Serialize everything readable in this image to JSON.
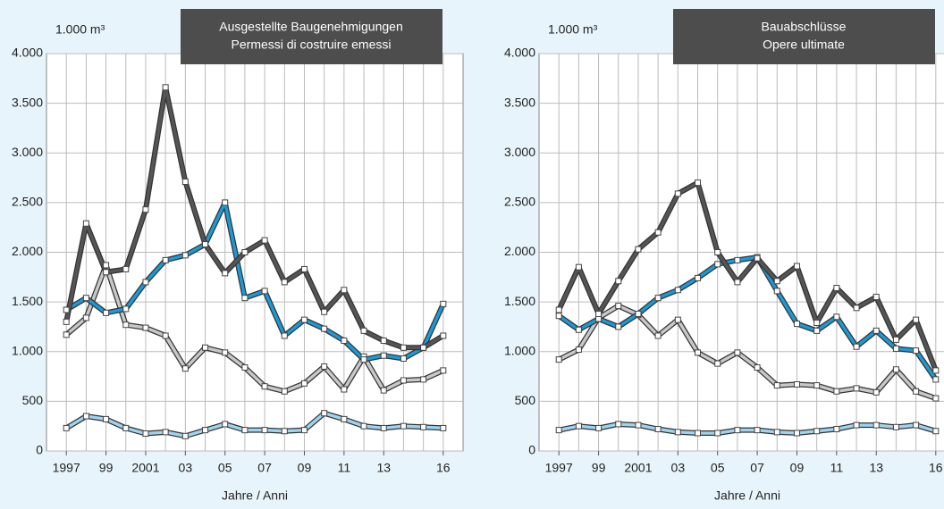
{
  "chart_data": [
    {
      "type": "line",
      "title": "Ausgestellte Baugenehmigungen",
      "subtitle": "Permessi di costruire emessi",
      "y_unit": "1.000 m³",
      "xlabel": "Jahre / Anni",
      "x": [
        1997,
        1998,
        1999,
        2000,
        2001,
        2002,
        2003,
        2004,
        2005,
        2006,
        2007,
        2008,
        2009,
        2010,
        2011,
        2012,
        2013,
        2014,
        2015,
        2016
      ],
      "xlim": [
        1996,
        2017
      ],
      "xticks": [
        {
          "value": 1997,
          "label": "1997"
        },
        {
          "value": 1999,
          "label": "99"
        },
        {
          "value": 2001,
          "label": "2001"
        },
        {
          "value": 2003,
          "label": "03"
        },
        {
          "value": 2005,
          "label": "05"
        },
        {
          "value": 2007,
          "label": "07"
        },
        {
          "value": 2009,
          "label": "09"
        },
        {
          "value": 2011,
          "label": "11"
        },
        {
          "value": 2013,
          "label": "13"
        },
        {
          "value": 2016,
          "label": "16"
        }
      ],
      "ylim": [
        0,
        4000
      ],
      "yticks": [
        0,
        500,
        {
          "value": 1000,
          "label": "1.000"
        },
        {
          "value": 1500,
          "label": "1.500"
        },
        {
          "value": 2000,
          "label": "2.000"
        },
        {
          "value": 2500,
          "label": "2.500"
        },
        {
          "value": 3000,
          "label": "3.000"
        },
        {
          "value": 3500,
          "label": "3.500"
        },
        {
          "value": 4000,
          "label": "4.000"
        }
      ],
      "grid": true,
      "series": [
        {
          "color": "#c8c8c8",
          "values": [
            1170,
            1340,
            1870,
            1270,
            1240,
            1160,
            830,
            1040,
            990,
            840,
            650,
            600,
            680,
            850,
            620,
            950,
            610,
            710,
            720,
            810
          ]
        },
        {
          "color": "#9fd3ef",
          "values": [
            230,
            350,
            320,
            230,
            175,
            190,
            150,
            210,
            270,
            210,
            210,
            200,
            210,
            380,
            320,
            250,
            230,
            250,
            240,
            230
          ]
        },
        {
          "color": "#1a9ad6",
          "values": [
            1420,
            1540,
            1390,
            1430,
            1700,
            1920,
            1970,
            2080,
            2500,
            1540,
            1610,
            1160,
            1320,
            1230,
            1110,
            920,
            960,
            930,
            1040,
            1480
          ]
        },
        {
          "color": "#555555",
          "values": [
            1300,
            2290,
            1800,
            1830,
            2430,
            3660,
            2710,
            2080,
            1790,
            2000,
            2120,
            1700,
            1830,
            1400,
            1620,
            1210,
            1110,
            1040,
            1040,
            1160
          ]
        }
      ]
    },
    {
      "type": "line",
      "title": "Bauabschlüsse",
      "subtitle": "Opere ultimate",
      "y_unit": "1.000 m³",
      "xlabel": "Jahre / Anni",
      "x": [
        1997,
        1998,
        1999,
        2000,
        2001,
        2002,
        2003,
        2004,
        2005,
        2006,
        2007,
        2008,
        2009,
        2010,
        2011,
        2012,
        2013,
        2014,
        2015,
        2016
      ],
      "xlim": [
        1996,
        2017
      ],
      "xticks": [
        {
          "value": 1997,
          "label": "1997"
        },
        {
          "value": 1999,
          "label": "99"
        },
        {
          "value": 2001,
          "label": "2001"
        },
        {
          "value": 2003,
          "label": "03"
        },
        {
          "value": 2005,
          "label": "05"
        },
        {
          "value": 2007,
          "label": "07"
        },
        {
          "value": 2009,
          "label": "09"
        },
        {
          "value": 2011,
          "label": "11"
        },
        {
          "value": 2013,
          "label": "13"
        },
        {
          "value": 2016,
          "label": "16"
        }
      ],
      "ylim": [
        0,
        4000
      ],
      "yticks": [
        0,
        500,
        {
          "value": 1000,
          "label": "1.000"
        },
        {
          "value": 1500,
          "label": "1.500"
        },
        {
          "value": 2000,
          "label": "2.000"
        },
        {
          "value": 2500,
          "label": "2.500"
        },
        {
          "value": 3000,
          "label": "3.000"
        },
        {
          "value": 3500,
          "label": "3.500"
        },
        {
          "value": 4000,
          "label": "4.000"
        }
      ],
      "grid": true,
      "series": [
        {
          "color": "#c8c8c8",
          "values": [
            920,
            1020,
            1340,
            1460,
            1370,
            1160,
            1320,
            990,
            880,
            990,
            840,
            660,
            670,
            660,
            600,
            630,
            590,
            820,
            600,
            530
          ]
        },
        {
          "color": "#9fd3ef",
          "values": [
            210,
            250,
            230,
            270,
            260,
            220,
            190,
            180,
            180,
            210,
            210,
            190,
            180,
            200,
            220,
            260,
            260,
            240,
            260,
            200
          ]
        },
        {
          "color": "#1a9ad6",
          "values": [
            1360,
            1220,
            1330,
            1250,
            1380,
            1540,
            1620,
            1740,
            1880,
            1920,
            1950,
            1610,
            1280,
            1210,
            1350,
            1050,
            1210,
            1030,
            1010,
            720
          ]
        },
        {
          "color": "#555555",
          "values": [
            1420,
            1850,
            1380,
            1710,
            2030,
            2200,
            2590,
            2700,
            2000,
            1700,
            1940,
            1710,
            1860,
            1290,
            1640,
            1440,
            1550,
            1120,
            1320,
            810
          ]
        }
      ]
    }
  ]
}
